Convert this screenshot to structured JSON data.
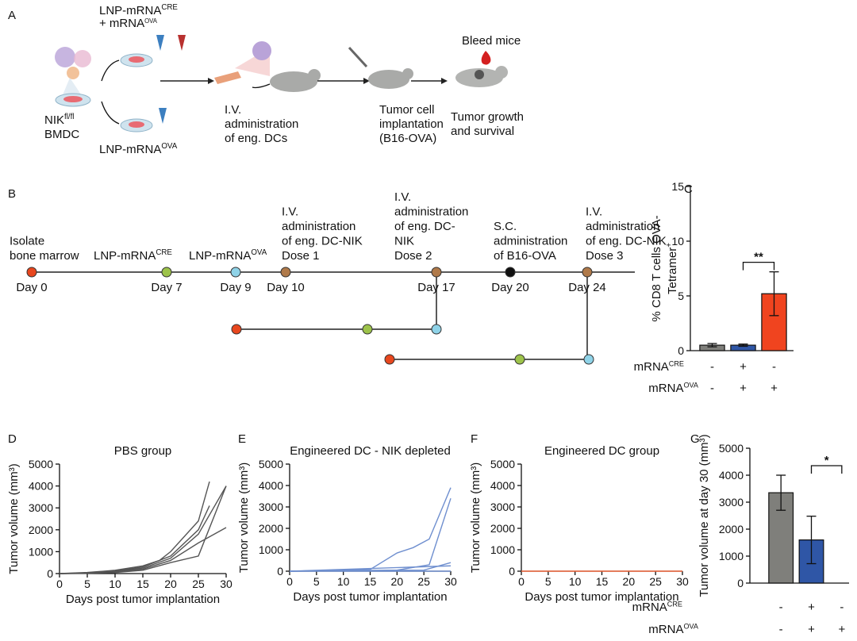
{
  "diagram_a": {
    "label": "A",
    "treatment_top": [
      {
        "text": "LNP-mRNA",
        "sup": "CRE"
      },
      {
        "text": "+ mRNA",
        "sup": "OVA"
      }
    ],
    "cells": [
      {
        "text": "NIK",
        "sup": "fl/fl"
      },
      {
        "text": "BMDC"
      }
    ],
    "treatment_bottom": [
      {
        "text": "LNP-mRNA",
        "sup": "OVA"
      }
    ],
    "bleed": "Bleed mice",
    "steps": [
      {
        "lines": [
          "I.V.",
          "administration",
          "of eng. DCs"
        ]
      },
      {
        "lines": [
          "Tumor  cell",
          "implantation",
          "(B16-OVA)"
        ]
      },
      {
        "lines": [
          "Tumor growth",
          "and survival"
        ]
      }
    ]
  },
  "timeline_b": {
    "label": "B",
    "events": [
      {
        "day": "Day 0",
        "color": "#e8471e",
        "lines": [
          {
            "text": "Isolate"
          },
          {
            "text": "bone marrow"
          }
        ]
      },
      {
        "day": "Day 7",
        "color": "#9dc34a",
        "lines": [
          {
            "text": "LNP-mRNA",
            "sup": "CRE"
          }
        ]
      },
      {
        "day": "Day 9",
        "color": "#8fd3e8",
        "lines": [
          {
            "text": "LNP-mRNA",
            "sup": "OVA"
          }
        ]
      },
      {
        "day": "Day 10",
        "color": "#b07a4a",
        "lines": [
          {
            "text": "I.V."
          },
          {
            "text": "administration"
          },
          {
            "text": "of eng. DC-NIK"
          },
          {
            "text": "Dose 1"
          }
        ]
      },
      {
        "day": "Day 17",
        "color": "#b07a4a",
        "lines": [
          {
            "text": "I.V."
          },
          {
            "text": "administration"
          },
          {
            "text": "of eng. DC-"
          },
          {
            "text": "NIK"
          },
          {
            "text": "Dose 2"
          }
        ]
      },
      {
        "day": "Day 20",
        "color": "#111111",
        "lines": [
          {
            "text": "S.C."
          },
          {
            "text": "administration"
          },
          {
            "text": "of B16-OVA"
          }
        ]
      },
      {
        "day": "Day 24",
        "color": "#b07a4a",
        "lines": [
          {
            "text": "I.V."
          },
          {
            "text": "administration"
          },
          {
            "text": "of eng. DC-NIK"
          },
          {
            "text": "Dose 3"
          }
        ]
      }
    ]
  },
  "chart_data": [
    {
      "type": "bar",
      "label": "C",
      "ylabel": [
        {
          "text": "% CD8 T cells OVA-"
        },
        {
          "text": "Tetramer",
          "sup": "+"
        }
      ],
      "values": [
        0.5,
        0.5,
        5.2
      ],
      "errors": [
        0.15,
        0.1,
        2.0
      ],
      "colors": [
        "#7f7f7b",
        "#2f56a6",
        "#f0441f"
      ],
      "rows": [
        {
          "name": {
            "text": "mRNA",
            "sup": "CRE"
          },
          "signs": [
            "-",
            "+",
            "-"
          ]
        },
        {
          "name": {
            "text": "mRNA",
            "sup": "OVA"
          },
          "signs": [
            "-",
            "+",
            "+"
          ]
        }
      ],
      "significance": "**",
      "ylim": [
        0,
        15
      ],
      "yticks": [
        0,
        5,
        10,
        15
      ]
    },
    {
      "type": "line",
      "label": "D",
      "title": "PBS group",
      "color": "#555555",
      "xlabel": "Days post tumor implantation",
      "ylabel": "Tumor volume (mm³)",
      "series": [
        {
          "x": [
            0,
            5,
            10,
            15,
            18,
            20,
            25,
            27
          ],
          "values": [
            0,
            50,
            150,
            350,
            600,
            1000,
            2400,
            4200
          ]
        },
        {
          "x": [
            0,
            5,
            10,
            15,
            20,
            25,
            27
          ],
          "values": [
            0,
            30,
            120,
            300,
            800,
            2000,
            3100
          ]
        },
        {
          "x": [
            0,
            5,
            10,
            15,
            20,
            25,
            30
          ],
          "values": [
            0,
            20,
            100,
            250,
            700,
            1800,
            4000
          ]
        },
        {
          "x": [
            0,
            5,
            10,
            15,
            20,
            25,
            30
          ],
          "values": [
            0,
            20,
            80,
            200,
            600,
            1400,
            2100
          ]
        },
        {
          "x": [
            0,
            5,
            10,
            15,
            20,
            25,
            30
          ],
          "values": [
            0,
            10,
            50,
            150,
            500,
            800,
            4000
          ]
        }
      ],
      "xlim": [
        0,
        30
      ],
      "xticks": [
        0,
        5,
        10,
        15,
        20,
        25,
        30
      ],
      "ylim": [
        0,
        5000
      ],
      "yticks": [
        0,
        1000,
        2000,
        3000,
        4000,
        5000
      ]
    },
    {
      "type": "line",
      "label": "E",
      "title": "Engineered DC - NIK depleted",
      "color": "#6f8fcf",
      "xlabel": "Days post tumor implantation",
      "ylabel": "Tumor volume (mm³)",
      "series": [
        {
          "x": [
            0,
            15,
            20,
            23,
            26,
            30
          ],
          "values": [
            0,
            80,
            850,
            1100,
            1500,
            3900
          ]
        },
        {
          "x": [
            0,
            20,
            26,
            30
          ],
          "values": [
            0,
            50,
            300,
            3400
          ]
        },
        {
          "x": [
            0,
            25,
            30
          ],
          "values": [
            0,
            50,
            400
          ]
        },
        {
          "x": [
            0,
            30
          ],
          "values": [
            0,
            250
          ]
        },
        {
          "x": [
            0,
            30
          ],
          "values": [
            0,
            0
          ]
        }
      ],
      "xlim": [
        0,
        30
      ],
      "xticks": [
        0,
        5,
        10,
        15,
        20,
        25,
        30
      ],
      "ylim": [
        0,
        5000
      ],
      "yticks": [
        0,
        1000,
        2000,
        3000,
        4000,
        5000
      ]
    },
    {
      "type": "line",
      "label": "F",
      "title": "Engineered DC group",
      "color": "#f0643a",
      "xlabel": "Days post tumor implantation",
      "ylabel": "Tumor volume (mm³)",
      "series": [
        {
          "x": [
            0,
            30
          ],
          "values": [
            0,
            0
          ]
        }
      ],
      "xlim": [
        0,
        30
      ],
      "xticks": [
        0,
        5,
        10,
        15,
        20,
        25,
        30
      ],
      "ylim": [
        0,
        5000
      ],
      "yticks": [
        0,
        1000,
        2000,
        3000,
        4000,
        5000
      ]
    },
    {
      "type": "bar",
      "label": "G",
      "ylabel": [
        {
          "text": "Tumor volume at day 30 (mm³)"
        }
      ],
      "values": [
        3350,
        1600,
        0
      ],
      "errors": [
        650,
        880,
        0
      ],
      "colors": [
        "#7f7f7b",
        "#2f56a6",
        "#f0441f"
      ],
      "rows": [
        {
          "name": {
            "text": "mRNA",
            "sup": "CRE"
          },
          "signs": [
            "-",
            "+",
            "-"
          ]
        },
        {
          "name": {
            "text": "mRNA",
            "sup": "OVA"
          },
          "signs": [
            "-",
            "+",
            "+"
          ]
        }
      ],
      "significance": "*",
      "ylim": [
        0,
        5000
      ],
      "yticks": [
        0,
        1000,
        2000,
        3000,
        4000,
        5000
      ]
    }
  ]
}
